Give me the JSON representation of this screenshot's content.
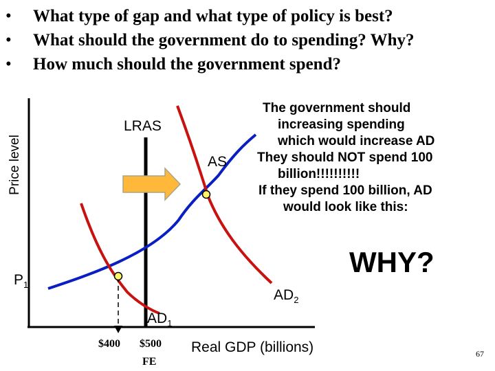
{
  "bullets": [
    "What type of gap and what type of policy is best?",
    "What should the government do to spending? Why?",
    "How much should the government spend?"
  ],
  "bullet_symbol": "•",
  "graph": {
    "y_axis_label": "Price level",
    "x_axis_label": "Real GDP (billions)",
    "lras_label": "LRAS",
    "as_label": "AS",
    "p_label": "P",
    "p_sub": "1",
    "ad1_label": "AD",
    "ad1_sub": "1",
    "ad2_label": "AD",
    "ad2_sub": "2",
    "x_tick_400": "$400",
    "x_tick_500": "$500",
    "x_tick_fe": "FE",
    "colors": {
      "as_curve": "#0a1fc2",
      "ad_curve": "#c8120f",
      "arrow_fill": "#ffb83a",
      "arrow_stroke": "#a8a58a",
      "equilibrium_point": "#fff46a"
    }
  },
  "note_lines": [
    "The government should",
    "increasing spending",
    "which would increase AD",
    "They should NOT spend 100",
    "billion!!!!!!!!!!",
    "If they spend 100 billion, AD",
    "would look like this:"
  ],
  "why_text": "WHY?",
  "page_number": "67"
}
